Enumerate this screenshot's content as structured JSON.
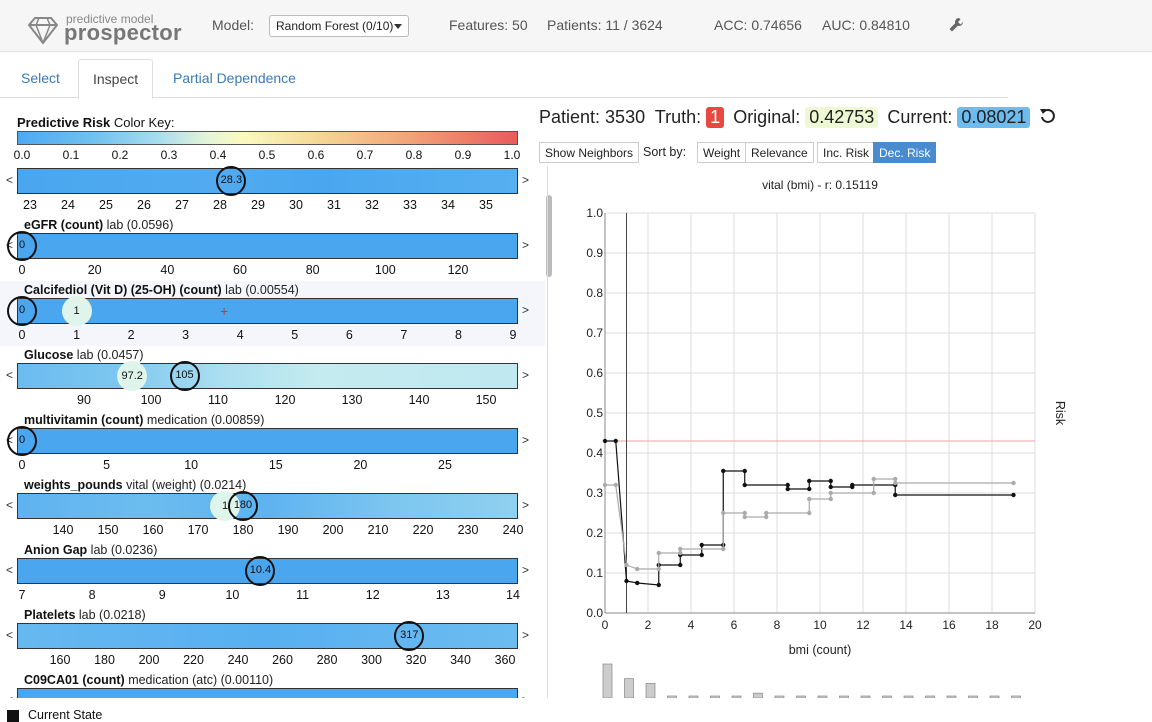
{
  "logo": {
    "subtitle": "predictive model",
    "title": "prospector"
  },
  "topbar": {
    "model_label": "Model:",
    "model_value": "Random Forest (0/10)",
    "features": "Features: 50",
    "patients": "Patients: 11 / 3624",
    "acc": "ACC: 0.74656",
    "auc": "AUC: 0.84810"
  },
  "tabs": [
    "Select",
    "Inspect",
    "Partial Dependence"
  ],
  "color_key": {
    "label_bold": "Predictive Risk",
    "label_rest": " Color Key:",
    "ticks": [
      "0.0",
      "0.1",
      "0.2",
      "0.3",
      "0.4",
      "0.5",
      "0.6",
      "0.7",
      "0.8",
      "0.9",
      "1.0"
    ]
  },
  "features": [
    {
      "name": "",
      "meta": "",
      "ticks": [
        "23",
        "24",
        "25",
        "26",
        "27",
        "28",
        "29",
        "30",
        "31",
        "32",
        "33",
        "34",
        "35"
      ],
      "current": "28.3",
      "ghost": "",
      "has_left": true
    },
    {
      "name": "eGFR (count)",
      "meta": " lab (0.0596)",
      "ticks": [
        "0",
        "20",
        "40",
        "60",
        "80",
        "100",
        "120"
      ],
      "current": "0",
      "ghost": "",
      "has_left": true
    },
    {
      "name": "Calcifediol (Vit D) (25-OH) (count)",
      "meta": " lab (0.00554)",
      "ticks": [
        "0",
        "1",
        "2",
        "3",
        "4",
        "5",
        "6",
        "7",
        "8",
        "9"
      ],
      "current": "0",
      "ghost": "1",
      "has_left": false
    },
    {
      "name": "Glucose",
      "meta": " lab (0.0457)",
      "ticks": [
        "90",
        "100",
        "110",
        "120",
        "130",
        "140",
        "150"
      ],
      "current": "105",
      "ghost": "97.2",
      "has_left": true
    },
    {
      "name": "multivitamin (count)",
      "meta": " medication (0.00859)",
      "ticks": [
        "0",
        "5",
        "10",
        "15",
        "20",
        "25"
      ],
      "current": "0",
      "ghost": "",
      "has_left": true
    },
    {
      "name": "weights_pounds",
      "meta": " vital (weight) (0.0214)",
      "ticks": [
        "140",
        "150",
        "160",
        "170",
        "180",
        "190",
        "200",
        "210",
        "220",
        "230",
        "240"
      ],
      "current": "180",
      "ghost": "1",
      "has_left": true
    },
    {
      "name": "Anion Gap",
      "meta": " lab (0.0236)",
      "ticks": [
        "7",
        "8",
        "9",
        "10",
        "11",
        "12",
        "13",
        "14"
      ],
      "current": "10.4",
      "ghost": "",
      "has_left": true
    },
    {
      "name": "Platelets",
      "meta": " lab (0.0218)",
      "ticks": [
        "160",
        "180",
        "200",
        "220",
        "240",
        "260",
        "280",
        "300",
        "320",
        "340",
        "360"
      ],
      "current": "317",
      "ghost": "",
      "has_left": true
    },
    {
      "name": "C09CA01 (count)",
      "meta": " medication (atc) (0.00110)",
      "ticks": [],
      "current": "",
      "ghost": "",
      "has_left": true
    }
  ],
  "patient": {
    "patient_label": "Patient: 3530",
    "truth_label": "Truth:",
    "truth_value": "1",
    "original_label": "Original:",
    "original_value": "0.42753",
    "current_label": "Current:",
    "current_value": "0.08021",
    "truth_color": "#e8483f",
    "original_color": "#eef8d5",
    "current_color": "#6cbcf0"
  },
  "buttons": {
    "show_neighbors": "Show Neighbors",
    "sort_by": "Sort by:",
    "weight": "Weight",
    "relevance": "Relevance",
    "inc_risk": "Inc. Risk",
    "dec_risk": "Dec. Risk"
  },
  "chart_data": {
    "type": "line",
    "title": "vital (bmi) - r: 0.15119",
    "xlabel": "bmi (count)",
    "ylabel": "Risk",
    "xlim": [
      0,
      20
    ],
    "ylim": [
      0,
      1
    ],
    "xticks": [
      "0",
      "2",
      "4",
      "6",
      "8",
      "10",
      "12",
      "14",
      "16",
      "18",
      "20"
    ],
    "yticks": [
      "0.0",
      "0.1",
      "0.2",
      "0.3",
      "0.4",
      "0.5",
      "0.6",
      "0.7",
      "0.8",
      "0.9",
      "1.0"
    ],
    "reference_line": 0.43,
    "current_marker_x": 1.0,
    "series": [
      {
        "name": "current",
        "color": "#111111",
        "x": [
          0,
          0.5,
          1.0,
          1.5,
          2.5,
          2.5,
          3.5,
          3.5,
          4.5,
          4.5,
          5.5,
          5.5,
          6.5,
          6.5,
          8.5,
          8.5,
          9.5,
          9.5,
          10.5,
          10.5,
          11.5,
          11.5,
          13.5,
          13.5,
          19
        ],
        "y": [
          0.43,
          0.43,
          0.08,
          0.075,
          0.07,
          0.12,
          0.12,
          0.145,
          0.145,
          0.17,
          0.17,
          0.355,
          0.355,
          0.32,
          0.32,
          0.31,
          0.31,
          0.33,
          0.33,
          0.315,
          0.315,
          0.32,
          0.32,
          0.295,
          0.295
        ]
      },
      {
        "name": "original",
        "color": "#aaaaaa",
        "x": [
          0,
          0.5,
          1.0,
          1.5,
          2.5,
          2.5,
          3.5,
          3.5,
          5.5,
          5.5,
          6.5,
          6.5,
          7.5,
          7.5,
          9.5,
          9.5,
          10.5,
          10.5,
          12.5,
          12.5,
          13.5,
          13.5,
          19
        ],
        "y": [
          0.32,
          0.32,
          0.12,
          0.11,
          0.11,
          0.15,
          0.15,
          0.16,
          0.16,
          0.25,
          0.25,
          0.24,
          0.24,
          0.25,
          0.25,
          0.285,
          0.285,
          0.3,
          0.3,
          0.335,
          0.335,
          0.325,
          0.325
        ]
      }
    ],
    "histogram": [
      7,
      4,
      3,
      0,
      0,
      0,
      0,
      1,
      0,
      0,
      0,
      0,
      0,
      0,
      0,
      0,
      0,
      0,
      0,
      0
    ]
  },
  "legend": {
    "current_state": "Current State"
  }
}
